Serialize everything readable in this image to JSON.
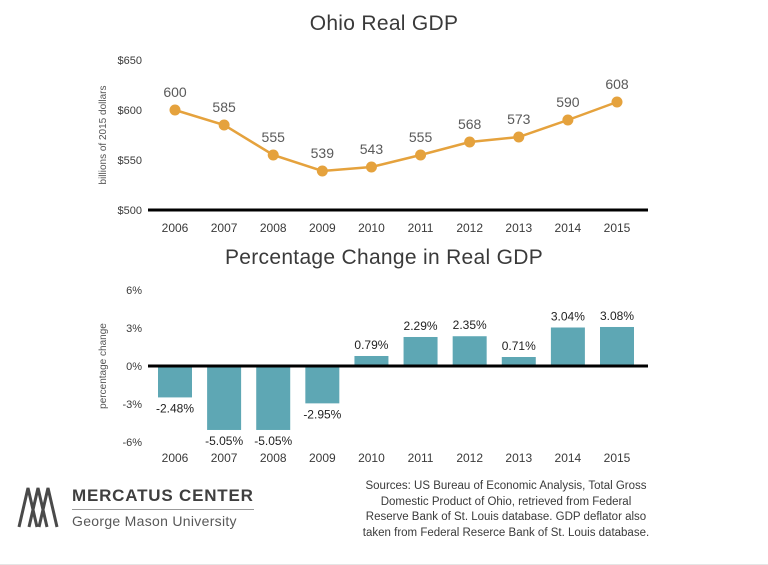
{
  "chart_data": [
    {
      "type": "line",
      "title": "Ohio Real GDP",
      "ylabel": "billions of 2015 dollars",
      "categories": [
        "2006",
        "2007",
        "2008",
        "2009",
        "2010",
        "2011",
        "2012",
        "2013",
        "2014",
        "2015"
      ],
      "values": [
        600,
        585,
        555,
        539,
        543,
        555,
        568,
        573,
        590,
        608
      ],
      "labels": [
        "600",
        "585",
        "555",
        "539",
        "543",
        "555",
        "568",
        "573",
        "590",
        "608"
      ],
      "yticks": [
        {
          "value": 650,
          "label": "$650"
        },
        {
          "value": 600,
          "label": "$600"
        },
        {
          "value": 550,
          "label": "$550"
        },
        {
          "value": 500,
          "label": "$500"
        }
      ],
      "ylim": [
        500,
        650
      ],
      "grid": false,
      "legend": "none",
      "color": "#E5A23D"
    },
    {
      "type": "bar",
      "title": "Percentage Change in Real GDP",
      "ylabel": "percentage change",
      "categories": [
        "2006",
        "2007",
        "2008",
        "2009",
        "2010",
        "2011",
        "2012",
        "2013",
        "2014",
        "2015"
      ],
      "values": [
        -2.48,
        -5.05,
        -5.05,
        -2.95,
        0.79,
        2.29,
        2.35,
        0.71,
        3.04,
        3.08
      ],
      "labels": [
        "-2.48%",
        "-5.05%",
        "-5.05%",
        "-2.95%",
        "0.79%",
        "2.29%",
        "2.35%",
        "0.71%",
        "3.04%",
        "3.08%"
      ],
      "yticks": [
        {
          "value": 6,
          "label": "6%"
        },
        {
          "value": 3,
          "label": "3%"
        },
        {
          "value": 0,
          "label": "0%"
        },
        {
          "value": -3,
          "label": "-3%"
        },
        {
          "value": -6,
          "label": "-6%"
        }
      ],
      "ylim": [
        -6,
        6
      ],
      "grid": false,
      "legend": "none",
      "color": "#5EA7B4"
    }
  ],
  "footer": {
    "logo_title": "MERCATUS CENTER",
    "logo_subtitle": "George Mason University",
    "sources": "Sources: US Bureau of Economic Analysis, Total Gross\nDomestic Product of Ohio, retrieved from Federal\nReserve Bank of St. Louis database. GDP deflator also\ntaken from Federal Reserce Bank of St. Louis database."
  }
}
